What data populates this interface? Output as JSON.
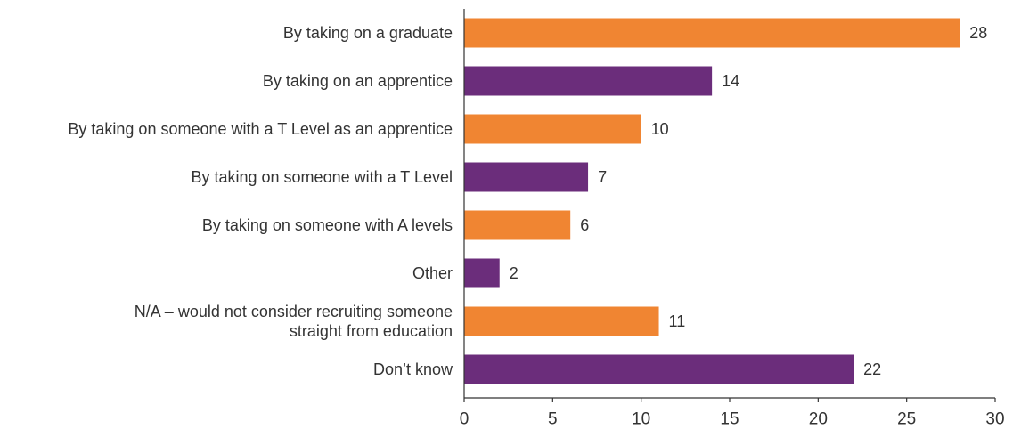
{
  "chart_data": {
    "type": "bar",
    "orientation": "horizontal",
    "categories": [
      [
        "By taking on a graduate"
      ],
      [
        "By taking on an apprentice"
      ],
      [
        "By taking on someone with a T Level as an apprentice"
      ],
      [
        "By taking on someone with a T Level"
      ],
      [
        "By taking on someone with A levels"
      ],
      [
        "Other"
      ],
      [
        "N/A – would not consider recruiting someone",
        "straight from education"
      ],
      [
        "Don’t know"
      ]
    ],
    "values": [
      28,
      14,
      10,
      7,
      6,
      2,
      11,
      22
    ],
    "bar_colors": [
      "#F08532",
      "#6B2D7B",
      "#F08532",
      "#6B2D7B",
      "#F08532",
      "#6B2D7B",
      "#F08532",
      "#6B2D7B"
    ],
    "xlim": [
      0,
      30
    ],
    "xticks": [
      0,
      5,
      10,
      15,
      20,
      25,
      30
    ],
    "grid": false,
    "show_data_labels": true,
    "title": "",
    "xlabel": "",
    "ylabel": ""
  },
  "colors": {
    "orange": "#F08532",
    "purple": "#6B2D7B",
    "axis": "#333333",
    "text": "#333333"
  }
}
